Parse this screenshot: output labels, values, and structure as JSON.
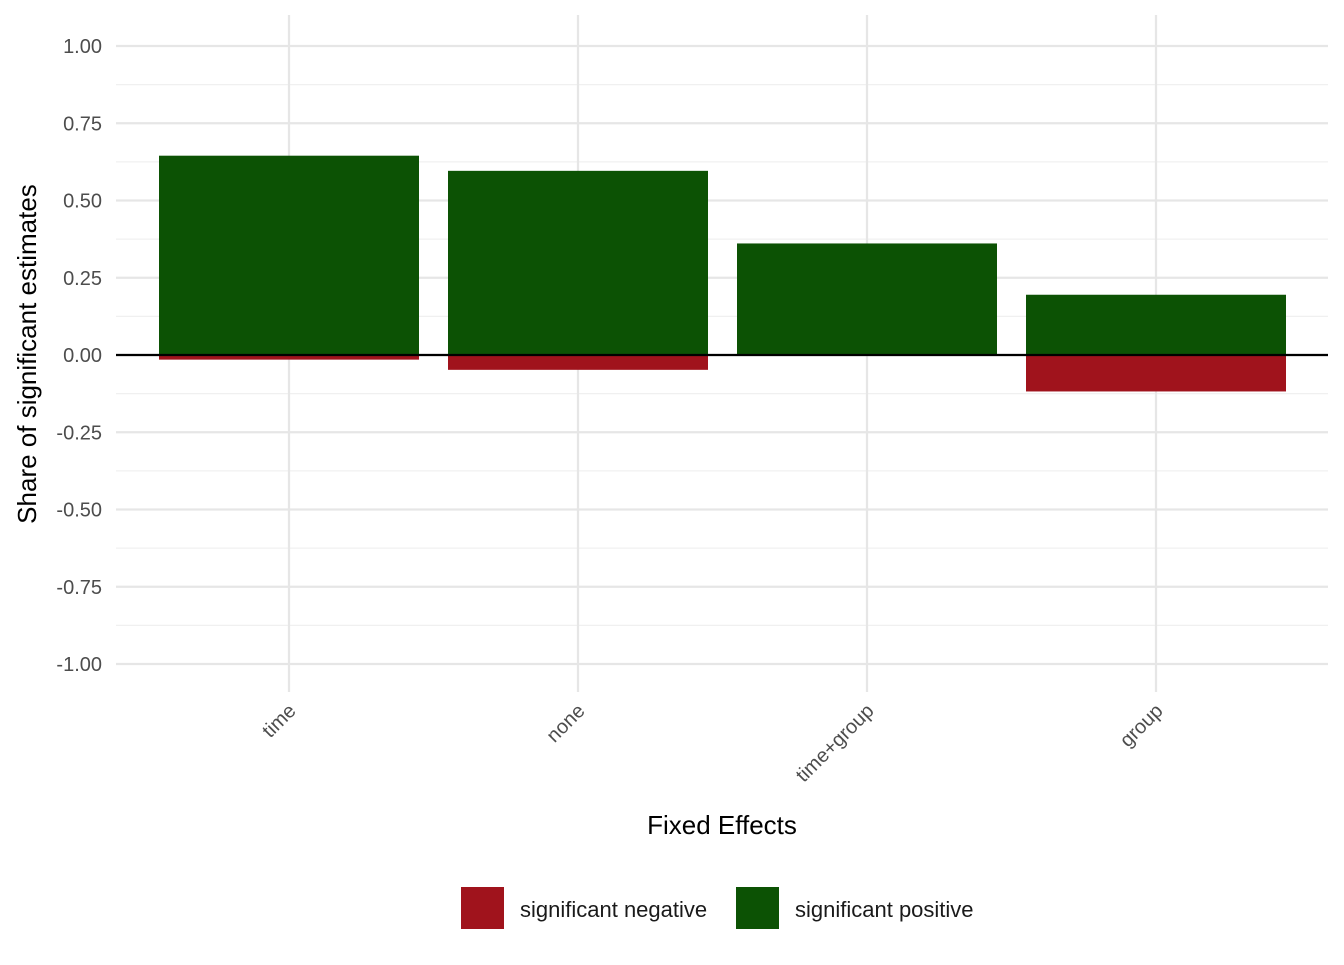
{
  "chart_data": {
    "type": "bar",
    "stacked": true,
    "title": "",
    "xlabel": "Fixed Effects",
    "ylabel": "Share of significant estimates",
    "categories": [
      "time",
      "none",
      "time+group",
      "group"
    ],
    "series": [
      {
        "name": "significant negative",
        "color": "#A0131C",
        "values": [
          -0.015,
          -0.048,
          0.0,
          -0.118
        ]
      },
      {
        "name": "significant positive",
        "color": "#0C5204",
        "values": [
          0.645,
          0.596,
          0.361,
          0.195
        ]
      }
    ],
    "ylim": [
      -1.0,
      1.0
    ],
    "y_ticks": [
      "-1.00",
      "-0.75",
      "-0.50",
      "-0.25",
      "0.00",
      "0.25",
      "0.50",
      "0.75",
      "1.00"
    ],
    "grid": true,
    "zero_line": true,
    "legend_position": "bottom"
  }
}
